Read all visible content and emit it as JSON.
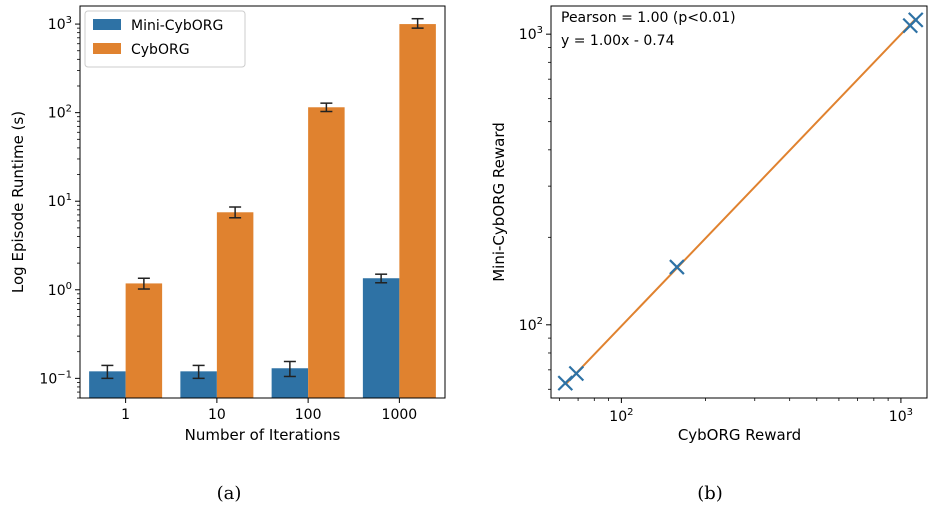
{
  "chart_data": [
    {
      "type": "bar",
      "title": "",
      "xlabel": "Number of Iterations",
      "ylabel": "Log Episode Runtime (s)",
      "yscale": "log",
      "ylim": [
        0.06,
        1600
      ],
      "yticks": [
        0.1,
        1,
        10,
        100,
        1000
      ],
      "ytick_labels": [
        {
          "base": "10",
          "exp": "−1"
        },
        {
          "base": "10",
          "exp": "0"
        },
        {
          "base": "10",
          "exp": "1"
        },
        {
          "base": "10",
          "exp": "2"
        },
        {
          "base": "10",
          "exp": "3"
        }
      ],
      "categories": [
        "1",
        "10",
        "100",
        "1000"
      ],
      "series": [
        {
          "name": "Mini-CybORG",
          "color": "#2e72a5",
          "values": [
            0.12,
            0.12,
            0.13,
            1.35
          ],
          "err_low": [
            0.1,
            0.1,
            0.105,
            1.2
          ],
          "err_high": [
            0.14,
            0.14,
            0.155,
            1.5
          ]
        },
        {
          "name": "CybORG",
          "color": "#e0822f",
          "values": [
            1.18,
            7.5,
            115,
            1000
          ],
          "err_low": [
            1.02,
            6.5,
            103,
            900
          ],
          "err_high": [
            1.35,
            8.6,
            128,
            1150
          ]
        }
      ],
      "legend": "top-left",
      "caption": "(a)"
    },
    {
      "type": "scatter",
      "title": "",
      "xlabel": "CybORG Reward",
      "ylabel": "Mini-CybORG Reward",
      "xscale": "log",
      "yscale": "log",
      "xlim": [
        56,
        1250
      ],
      "ylim": [
        56,
        1250
      ],
      "xticks": [
        100,
        1000
      ],
      "yticks": [
        100,
        1000
      ],
      "xtick_labels": [
        {
          "base": "10",
          "exp": "2"
        },
        {
          "base": "10",
          "exp": "3"
        }
      ],
      "ytick_labels": [
        {
          "base": "10",
          "exp": "2"
        },
        {
          "base": "10",
          "exp": "3"
        }
      ],
      "points": [
        {
          "x": 63,
          "y": 63
        },
        {
          "x": 69,
          "y": 68
        },
        {
          "x": 158,
          "y": 158
        },
        {
          "x": 1080,
          "y": 1070
        },
        {
          "x": 1130,
          "y": 1120
        }
      ],
      "marker_color": "#2e72a5",
      "fit_line": {
        "slope": 1.0,
        "intercept": -0.74,
        "x_range": [
          63,
          1130
        ],
        "color": "#e0822f"
      },
      "annotations": [
        "Pearson = 1.00 (p<0.01)",
        "y = 1.00x - 0.74"
      ],
      "caption": "(b)"
    }
  ]
}
